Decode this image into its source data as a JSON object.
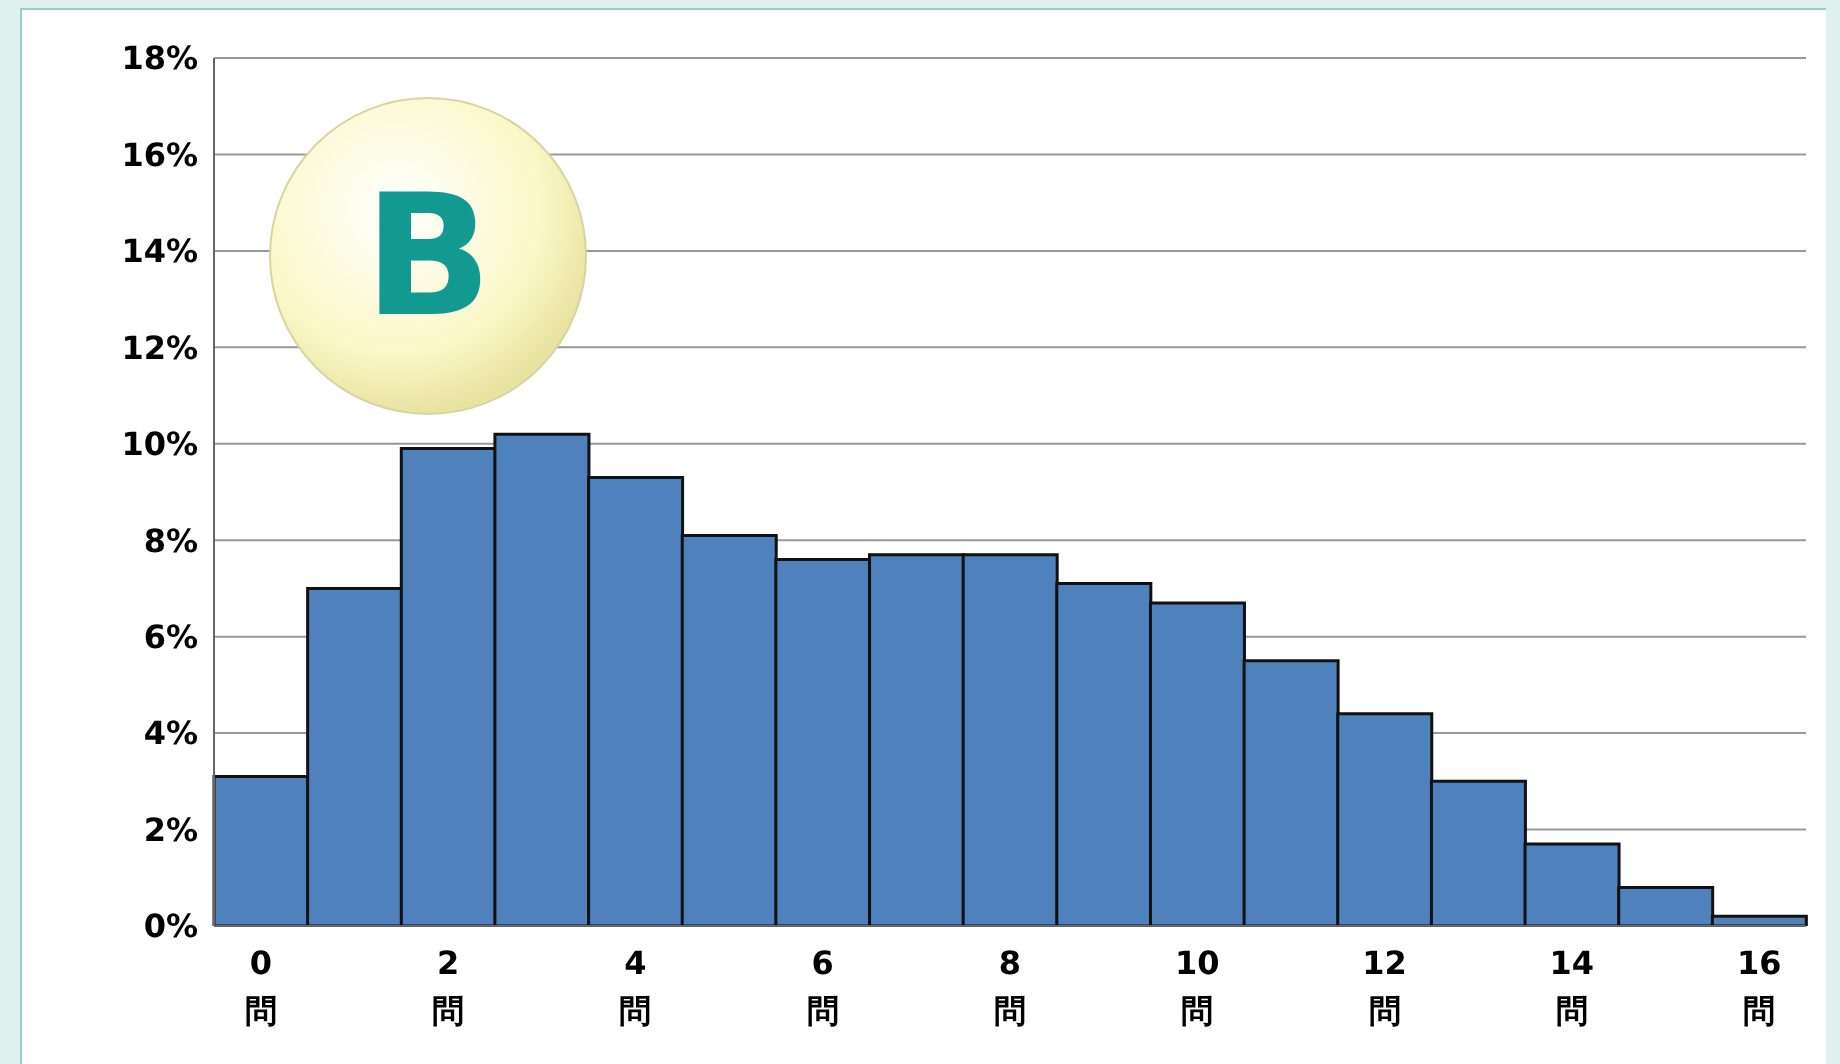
{
  "chart_data": {
    "type": "bar",
    "categories": [
      "0\n問",
      null,
      "2\n問",
      null,
      "4\n問",
      null,
      "6\n問",
      null,
      "8\n問",
      null,
      "10\n問",
      null,
      "12\n問",
      null,
      "14\n問",
      null,
      "16\n問"
    ],
    "values": [
      3.1,
      7.0,
      9.9,
      10.2,
      9.3,
      8.1,
      7.6,
      7.7,
      7.7,
      7.1,
      6.7,
      5.5,
      4.4,
      3.0,
      1.7,
      0.8,
      0.2
    ],
    "color": "#4f81bd",
    "ylim": [
      0,
      18
    ],
    "yticks": [
      {
        "value": 0,
        "label": "0%"
      },
      {
        "value": 2,
        "label": "2%"
      },
      {
        "value": 4,
        "label": "4%"
      },
      {
        "value": 6,
        "label": "6%"
      },
      {
        "value": 8,
        "label": "8%"
      },
      {
        "value": 10,
        "label": "10%"
      },
      {
        "value": 12,
        "label": "12%"
      },
      {
        "value": 14,
        "label": "14%"
      },
      {
        "value": 16,
        "label": "16%"
      },
      {
        "value": 18,
        "label": "18%"
      }
    ],
    "grid": "y",
    "annotations": [
      "B"
    ]
  }
}
